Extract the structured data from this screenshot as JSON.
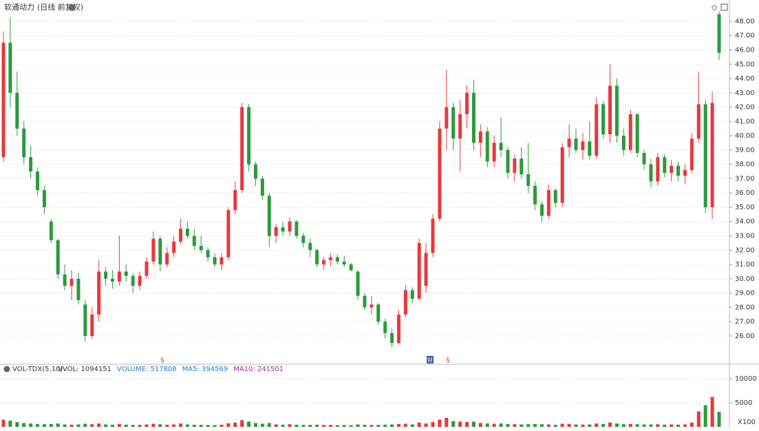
{
  "chart_data": [
    {
      "type": "candlestick",
      "title": "软通动力",
      "subtitle": "(日线 前复权)",
      "up_color": "#e8383d",
      "down_color": "#2a9b3c",
      "ylim": [
        24.07,
        49.25
      ],
      "yticks": [
        {
          "value": 26,
          "label": "26.00"
        },
        {
          "value": 27,
          "label": "27.00"
        },
        {
          "value": 28,
          "label": "28.00"
        },
        {
          "value": 29,
          "label": "29.00"
        },
        {
          "value": 30,
          "label": "30.00"
        },
        {
          "value": 31,
          "label": "31.00"
        },
        {
          "value": 32,
          "label": "32.00"
        },
        {
          "value": 33,
          "label": "33.00"
        },
        {
          "value": 34,
          "label": "34.00"
        },
        {
          "value": 35,
          "label": "35.00"
        },
        {
          "value": 36,
          "label": "36.00"
        },
        {
          "value": 37,
          "label": "37.00"
        },
        {
          "value": 38,
          "label": "38.00"
        },
        {
          "value": 39,
          "label": "39.00"
        },
        {
          "value": 40,
          "label": "40.00"
        },
        {
          "value": 41,
          "label": "41.00"
        },
        {
          "value": 42,
          "label": "42.00"
        },
        {
          "value": 43,
          "label": "43.00"
        },
        {
          "value": 44,
          "label": "44.00"
        },
        {
          "value": 45,
          "label": "45.00"
        },
        {
          "value": 46,
          "label": "46.00"
        },
        {
          "value": 47,
          "label": "47.00"
        },
        {
          "value": 48,
          "label": "48.00"
        }
      ],
      "grid": true,
      "markers": [
        "§",
        "财",
        "§"
      ],
      "ohlc": [
        [
          38.5,
          47.3,
          38.2,
          46.5
        ],
        [
          46.5,
          48.3,
          42,
          43
        ],
        [
          43,
          44.5,
          40,
          40.5
        ],
        [
          40.5,
          41,
          38,
          38.5
        ],
        [
          38.5,
          39.3,
          37,
          37.5
        ],
        [
          37.5,
          37.8,
          35.8,
          36.2
        ],
        [
          36.2,
          36.5,
          34.5,
          35
        ],
        [
          34,
          34.2,
          32.5,
          32.7
        ],
        [
          32.7,
          32.8,
          30,
          30.3
        ],
        [
          30.3,
          31,
          29.2,
          29.5
        ],
        [
          29.5,
          30.6,
          28.5,
          30
        ],
        [
          30,
          30.4,
          28.2,
          28.5
        ],
        [
          28.2,
          28.5,
          25.6,
          26
        ],
        [
          26,
          28,
          25.8,
          27.5
        ],
        [
          27.5,
          31.3,
          27,
          30.5
        ],
        [
          30.5,
          30.8,
          29.5,
          30
        ],
        [
          30,
          30.6,
          29.3,
          29.8
        ],
        [
          29.8,
          33,
          29.5,
          30.5
        ],
        [
          30.5,
          31,
          29.8,
          30.2
        ],
        [
          30.2,
          30.4,
          29,
          29.5
        ],
        [
          29.5,
          30.5,
          29.2,
          30.2
        ],
        [
          30.2,
          31.5,
          30,
          31.2
        ],
        [
          31.2,
          33.3,
          31,
          32.8
        ],
        [
          32.8,
          33,
          30.5,
          31
        ],
        [
          31,
          32.2,
          30.8,
          31.8
        ],
        [
          31.8,
          33,
          31.5,
          32.6
        ],
        [
          32.6,
          34.2,
          32.4,
          33.5
        ],
        [
          33.5,
          34,
          32.8,
          33
        ],
        [
          33,
          33.5,
          32,
          32.3
        ],
        [
          32.3,
          33,
          31.8,
          32
        ],
        [
          32,
          32.2,
          31.2,
          31.5
        ],
        [
          31.5,
          31.8,
          30.8,
          31
        ],
        [
          31,
          31.8,
          30.6,
          31.5
        ],
        [
          31.5,
          35,
          31.3,
          34.8
        ],
        [
          34.8,
          36.8,
          34.5,
          36.2
        ],
        [
          36.2,
          42.3,
          36,
          42
        ],
        [
          42,
          42.2,
          37.5,
          38
        ],
        [
          38,
          38.2,
          36.5,
          37
        ],
        [
          37,
          37.2,
          35.5,
          35.8
        ],
        [
          35.8,
          36,
          32.2,
          33
        ],
        [
          33,
          33.8,
          32.5,
          33.6
        ],
        [
          33.6,
          34,
          33,
          33.3
        ],
        [
          33.3,
          34.3,
          33,
          34
        ],
        [
          34,
          34.1,
          32.8,
          33
        ],
        [
          33,
          33.2,
          32.2,
          32.5
        ],
        [
          32.5,
          32.8,
          31.5,
          32
        ],
        [
          32,
          32.1,
          30.8,
          31
        ],
        [
          31,
          31.5,
          30.6,
          31.3
        ],
        [
          31.3,
          31.8,
          30.9,
          31.5
        ],
        [
          31.5,
          31.7,
          31,
          31.2
        ],
        [
          31.2,
          31.6,
          30.8,
          31
        ],
        [
          31,
          31.1,
          30.5,
          30.6
        ],
        [
          30.5,
          30.6,
          28.5,
          28.8
        ],
        [
          28.8,
          29,
          27.8,
          28
        ],
        [
          28,
          28.8,
          27.5,
          28.2
        ],
        [
          28.2,
          28.3,
          26.8,
          27
        ],
        [
          27,
          27.2,
          25.8,
          26.2
        ],
        [
          26.2,
          26.5,
          25.2,
          25.5
        ],
        [
          25.5,
          27.8,
          25.4,
          27.5
        ],
        [
          27.5,
          29.6,
          27.3,
          29.2
        ],
        [
          29.2,
          29.4,
          28.3,
          28.6
        ],
        [
          28.6,
          32.8,
          28.5,
          32.5
        ],
        [
          29.5,
          32.5,
          29,
          31.8
        ],
        [
          31.8,
          34.5,
          31.5,
          34.2
        ],
        [
          34.2,
          41,
          34,
          40.5
        ],
        [
          40.5,
          44.6,
          39,
          42
        ],
        [
          42,
          42.3,
          39,
          39.8
        ],
        [
          39.8,
          42.5,
          37.5,
          41.5
        ],
        [
          41.5,
          43.5,
          40.5,
          43
        ],
        [
          43,
          43.9,
          39,
          39.5
        ],
        [
          39.5,
          40.8,
          38.5,
          40.3
        ],
        [
          40.3,
          40.6,
          37.8,
          38.2
        ],
        [
          38.2,
          40,
          37.8,
          39.5
        ],
        [
          39.5,
          41.3,
          38.5,
          39
        ],
        [
          39,
          39.2,
          37,
          37.4
        ],
        [
          37.4,
          38.7,
          36.8,
          38.4
        ],
        [
          38.4,
          39.2,
          37,
          37.3
        ],
        [
          37.3,
          39.5,
          36,
          36.5
        ],
        [
          36.5,
          36.8,
          34.8,
          35.2
        ],
        [
          35.2,
          35.4,
          34,
          34.4
        ],
        [
          34.4,
          36.6,
          34.2,
          36.2
        ],
        [
          36.2,
          36.3,
          35,
          35.3
        ],
        [
          35.3,
          39.5,
          35,
          39.2
        ],
        [
          39.2,
          40.8,
          38.5,
          39.8
        ],
        [
          39.8,
          40.5,
          38.8,
          39
        ],
        [
          39,
          40.2,
          38.3,
          39.6
        ],
        [
          39.6,
          41,
          38.3,
          38.6
        ],
        [
          38.6,
          42.7,
          38.4,
          42.2
        ],
        [
          42.2,
          42.4,
          39.8,
          40.1
        ],
        [
          40.1,
          45,
          39.5,
          43.5
        ],
        [
          43.5,
          44,
          39.5,
          40
        ],
        [
          40,
          40.5,
          38.6,
          39
        ],
        [
          39,
          41.8,
          38.8,
          41.5
        ],
        [
          41.5,
          41.6,
          38.5,
          38.8
        ],
        [
          38.8,
          39,
          37.6,
          38
        ],
        [
          38,
          38.4,
          36.4,
          36.8
        ],
        [
          36.8,
          38.8,
          36.5,
          38.5
        ],
        [
          38.5,
          38.7,
          37.1,
          37.4
        ],
        [
          37.4,
          38.3,
          36.8,
          37.9
        ],
        [
          37.9,
          38.2,
          36.8,
          37.2
        ],
        [
          37.2,
          38,
          36.6,
          37.6
        ],
        [
          37.6,
          40.2,
          37.4,
          39.8
        ],
        [
          39.8,
          44.5,
          39.5,
          42.2
        ],
        [
          42.2,
          42.5,
          34.6,
          35
        ],
        [
          35,
          43.1,
          34.2,
          42.3
        ],
        [
          48.5,
          48.7,
          45.3,
          45.8
        ]
      ]
    },
    {
      "type": "bar",
      "indicator": "VOL-TDX(5,10)",
      "legend": [
        {
          "text": "VVOL: 1094151",
          "color": "#333333"
        },
        {
          "text": "VOLUME: 517808",
          "color": "#1f7bc9"
        },
        {
          "text": "MA5: 394569",
          "color": "#1f7bc9"
        },
        {
          "text": "MA10: 241501",
          "color": "#9b2d9b"
        }
      ],
      "unit": "X100",
      "ylim": [
        0,
        11000
      ],
      "yticks": [
        5000,
        10000
      ],
      "values": [
        1500,
        1300,
        1000,
        800,
        700,
        600,
        550,
        600,
        700,
        500,
        450,
        500,
        650,
        550,
        700,
        500,
        450,
        600,
        450,
        400,
        420,
        500,
        650,
        550,
        450,
        500,
        700,
        500,
        450,
        420,
        400,
        380,
        450,
        750,
        900,
        1400,
        1100,
        800,
        650,
        800,
        500,
        450,
        550,
        450,
        400,
        420,
        450,
        380,
        400,
        350,
        380,
        350,
        500,
        420,
        380,
        400,
        450,
        500,
        600,
        650,
        500,
        900,
        700,
        1000,
        1500,
        1900,
        1200,
        1100,
        1000,
        1100,
        800,
        700,
        650,
        700,
        600,
        550,
        500,
        550,
        600,
        550,
        500,
        420,
        650,
        600,
        500,
        480,
        500,
        700,
        600,
        900,
        700,
        550,
        600,
        550,
        500,
        500,
        550,
        450,
        500,
        450,
        500,
        900,
        3200,
        4500,
        6200,
        3100
      ]
    }
  ]
}
